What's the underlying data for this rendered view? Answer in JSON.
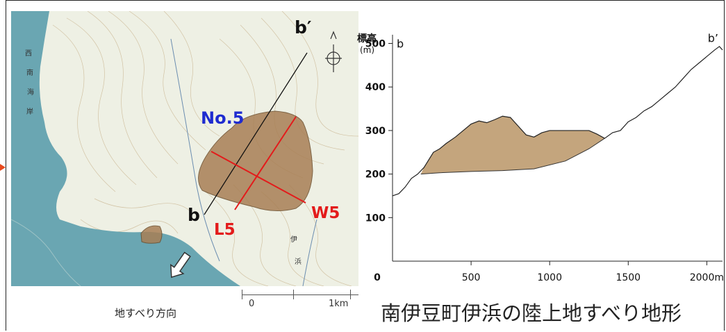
{
  "map": {
    "labels": {
      "section_line_top": "b′",
      "section_line_bottom": "b",
      "block_name": "No.5",
      "width_line": "W5",
      "length_line": "L5",
      "coast_text": "西南海岸",
      "town_text_1": "伊",
      "town_text_2": "浜"
    },
    "colors": {
      "sea": "#6aa6b2",
      "land": "#eef0e4",
      "landslide": "#a87f55",
      "block_label": "#1e2bd0",
      "red_lines": "#e31b1b"
    },
    "icons": [
      "north-compass-icon",
      "slide-direction-arrow-icon"
    ]
  },
  "scale": {
    "zero": "0",
    "end": "1km"
  },
  "direction_caption": "地すべり方向",
  "main_title": "南伊豆町伊浜の陸上地すべり地形",
  "chart_data": {
    "type": "area",
    "ylabel": "標高",
    "yunit": "(m)",
    "ylim": [
      0,
      520
    ],
    "xlim": [
      0,
      2100
    ],
    "yticks": [
      100,
      200,
      300,
      400,
      500
    ],
    "xticks": [
      500,
      1000,
      1500,
      2000
    ],
    "xtick_labels": [
      "500",
      "1000",
      "1500",
      "2000m"
    ],
    "origin_label": "0",
    "start_label": "b",
    "end_label": "b’",
    "series": [
      {
        "role": "ground surface profile",
        "x": [
          0,
          40,
          80,
          120,
          160,
          200,
          260,
          300,
          340,
          400,
          450,
          500,
          550,
          600,
          650,
          700,
          750,
          800,
          850,
          900,
          950,
          1000,
          1050,
          1100,
          1150,
          1200,
          1250,
          1300,
          1350,
          1400,
          1450,
          1500,
          1550,
          1600,
          1650,
          1700,
          1750,
          1800,
          1850,
          1900,
          1950,
          2000,
          2050,
          2080,
          2100
        ],
        "y": [
          150,
          155,
          170,
          190,
          200,
          215,
          250,
          258,
          270,
          285,
          300,
          315,
          322,
          318,
          325,
          333,
          330,
          310,
          290,
          285,
          295,
          300,
          300,
          300,
          300,
          300,
          300,
          292,
          282,
          295,
          300,
          320,
          330,
          345,
          355,
          370,
          385,
          400,
          420,
          440,
          455,
          470,
          485,
          493,
          485
        ]
      },
      {
        "role": "landslide body base",
        "x": [
          180,
          300,
          500,
          700,
          900,
          1100,
          1250,
          1350
        ],
        "y": [
          200,
          203,
          206,
          208,
          212,
          230,
          258,
          282
        ]
      }
    ],
    "fill_color": "#c4a57d"
  }
}
